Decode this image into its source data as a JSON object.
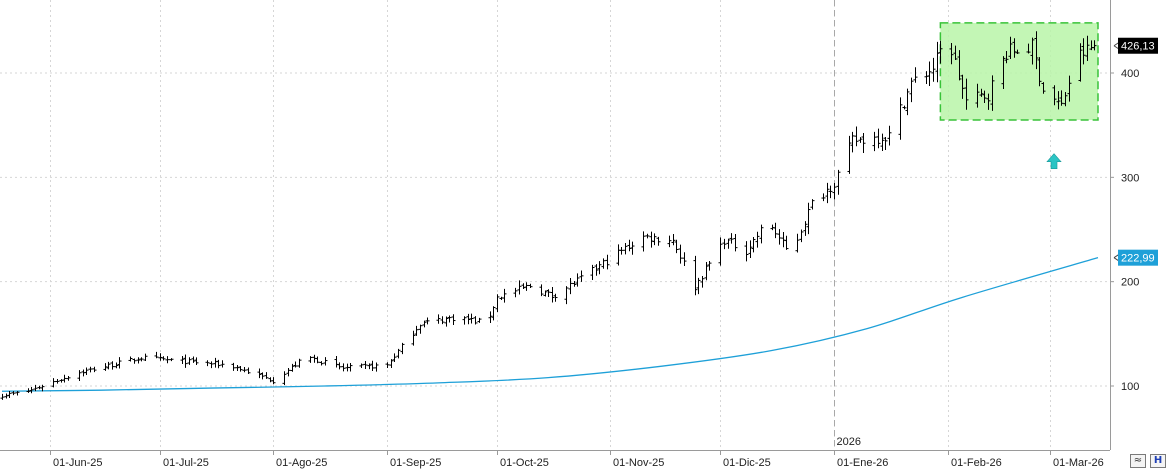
{
  "chart_data": {
    "type": "ohlc",
    "x_axis": {
      "labels": [
        "01-Jun-25",
        "01-Jul-25",
        "01-Ago-25",
        "01-Sep-25",
        "01-Oct-25",
        "01-Nov-25",
        "01-Dic-25",
        "01-Ene-26",
        "01-Feb-26",
        "01-Mar-26"
      ],
      "year_marker": "2026",
      "start": "2025-05-19",
      "end": "2026-03-14"
    },
    "y_axis": {
      "ticks": [
        100,
        200,
        300,
        400
      ],
      "range": [
        40,
        450
      ],
      "grid": true,
      "side": "right"
    },
    "price_series": {
      "name": "price",
      "color": "#000000",
      "last_value_label": "426,13",
      "closes_keypoints": [
        {
          "date": "2025-05-19",
          "value": 91
        },
        {
          "date": "2025-05-26",
          "value": 95
        },
        {
          "date": "2025-06-09",
          "value": 113
        },
        {
          "date": "2025-06-26",
          "value": 127
        },
        {
          "date": "2025-07-20",
          "value": 120
        },
        {
          "date": "2025-07-28",
          "value": 110
        },
        {
          "date": "2025-08-01",
          "value": 105
        },
        {
          "date": "2025-08-10",
          "value": 128
        },
        {
          "date": "2025-08-20",
          "value": 117
        },
        {
          "date": "2025-09-01",
          "value": 120
        },
        {
          "date": "2025-09-10",
          "value": 160
        },
        {
          "date": "2025-09-20",
          "value": 166
        },
        {
          "date": "2025-09-28",
          "value": 160
        },
        {
          "date": "2025-10-01",
          "value": 185
        },
        {
          "date": "2025-10-10",
          "value": 196
        },
        {
          "date": "2025-10-16",
          "value": 186
        },
        {
          "date": "2025-10-25",
          "value": 205
        },
        {
          "date": "2025-11-02",
          "value": 225
        },
        {
          "date": "2025-11-10",
          "value": 243
        },
        {
          "date": "2025-11-18",
          "value": 240
        },
        {
          "date": "2025-11-24",
          "value": 195
        },
        {
          "date": "2025-12-02",
          "value": 240
        },
        {
          "date": "2025-12-08",
          "value": 230
        },
        {
          "date": "2025-12-14",
          "value": 258
        },
        {
          "date": "2025-12-20",
          "value": 225
        },
        {
          "date": "2025-12-26",
          "value": 275
        },
        {
          "date": "2026-01-01",
          "value": 295
        },
        {
          "date": "2026-01-06",
          "value": 335
        },
        {
          "date": "2026-01-16",
          "value": 340
        },
        {
          "date": "2026-01-22",
          "value": 390
        },
        {
          "date": "2026-01-28",
          "value": 405
        },
        {
          "date": "2026-02-01",
          "value": 435
        },
        {
          "date": "2026-02-06",
          "value": 372
        },
        {
          "date": "2026-02-12",
          "value": 380
        },
        {
          "date": "2026-02-17",
          "value": 420
        },
        {
          "date": "2026-02-24",
          "value": 425
        },
        {
          "date": "2026-02-27",
          "value": 385
        },
        {
          "date": "2026-03-04",
          "value": 368
        },
        {
          "date": "2026-03-08",
          "value": 415
        },
        {
          "date": "2026-03-13",
          "value": 426
        }
      ]
    },
    "moving_average": {
      "name": "moving average",
      "color": "#1ea0d8",
      "last_value_label": "222,99",
      "points": [
        {
          "date": "2025-05-19",
          "value": 95
        },
        {
          "date": "2025-06-15",
          "value": 96
        },
        {
          "date": "2025-07-15",
          "value": 98
        },
        {
          "date": "2025-08-15",
          "value": 100
        },
        {
          "date": "2025-09-15",
          "value": 103
        },
        {
          "date": "2025-10-15",
          "value": 108
        },
        {
          "date": "2025-11-15",
          "value": 119
        },
        {
          "date": "2025-12-15",
          "value": 134
        },
        {
          "date": "2026-01-10",
          "value": 155
        },
        {
          "date": "2026-02-05",
          "value": 185
        },
        {
          "date": "2026-03-14",
          "value": 223
        }
      ]
    },
    "annotations": {
      "range_box": {
        "date_start": "2026-01-30",
        "date_end": "2026-03-14",
        "low": 355,
        "high": 448,
        "fill": "#b9f5a8",
        "border": "#38c238"
      },
      "arrow": {
        "date": "2026-03-02",
        "value": 315,
        "color": "#2bc4c4",
        "direction": "up"
      }
    }
  },
  "controls": {
    "approx_button_label": "≈",
    "h_button_label": "H"
  }
}
